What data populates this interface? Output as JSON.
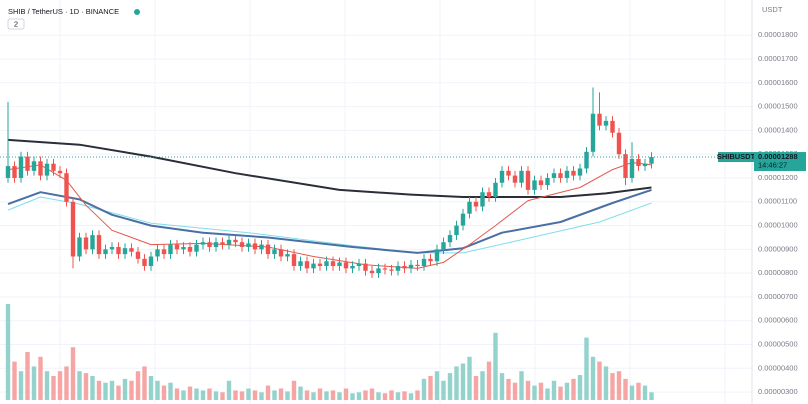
{
  "chart_data": {
    "type": "candlestick",
    "title": "SHIB / TetherUS · 1D · BINANCE",
    "indicators_badge": 2,
    "currency": "USDT",
    "last_price_symbol": "SHIBUSDT",
    "last_price": {
      "value": 1.288e-05,
      "label": "0.00001288"
    },
    "countdown": "14:46:27",
    "up_color": "#26a69a",
    "down_color": "#ef5350",
    "volume_up_color": "#93d3cc",
    "volume_down_color": "#f5a6a4",
    "grid": true,
    "ylim": [
      2.5e-06,
      1.948e-05
    ],
    "y2lim": [
      0,
      100
    ],
    "yticks": [
      {
        "value": 1.8e-05,
        "label": "0.00001800"
      },
      {
        "value": 1.7e-05,
        "label": "0.00001700"
      },
      {
        "value": 1.6e-05,
        "label": "0.00001600"
      },
      {
        "value": 1.5e-05,
        "label": "0.00001500"
      },
      {
        "value": 1.4e-05,
        "label": "0.00001400"
      },
      {
        "value": 1.3e-05,
        "label": "0.00001300"
      },
      {
        "value": 1.2e-05,
        "label": "0.00001200"
      },
      {
        "value": 1.1e-05,
        "label": "0.00001100"
      },
      {
        "value": 1e-05,
        "label": "0.00001000"
      },
      {
        "value": 9e-06,
        "label": "0.00000900"
      },
      {
        "value": 8e-06,
        "label": "0.00000800"
      },
      {
        "value": 7e-06,
        "label": "0.00000700"
      },
      {
        "value": 6e-06,
        "label": "0.00000600"
      },
      {
        "value": 5e-06,
        "label": "0.00000500"
      },
      {
        "value": 4e-06,
        "label": "0.00000400"
      },
      {
        "value": 3e-06,
        "label": "0.00000300"
      }
    ],
    "series": {
      "open": [
        1.2e-05,
        1.25e-05,
        1.2e-05,
        1.29e-05,
        1.23e-05,
        1.27e-05,
        1.21e-05,
        1.26e-05,
        1.23e-05,
        1.22e-05,
        1.1e-05,
        8.7e-06,
        9.5e-06,
        9e-06,
        9.6e-06,
        8.8e-06,
        9e-06,
        9.1e-06,
        8.8e-06,
        9.05e-06,
        8.9e-06,
        8.6e-06,
        8.3e-06,
        8.7e-06,
        9e-06,
        8.8e-06,
        9.2e-06,
        9e-06,
        9.1e-06,
        8.9e-06,
        9.2e-06,
        9.3e-06,
        9.1e-06,
        9.3e-06,
        9.2e-06,
        9.4e-06,
        9.3e-06,
        9.1e-06,
        9.25e-06,
        9e-06,
        9.2e-06,
        8.8e-06,
        9e-06,
        8.7e-06,
        8.8e-06,
        8.3e-06,
        8.5e-06,
        8.2e-06,
        8.4e-06,
        8.3e-06,
        8.5e-06,
        8.3e-06,
        8.45e-06,
        8.2e-06,
        8.3e-06,
        8.4e-06,
        8.1e-06,
        8e-06,
        8.2e-06,
        8.15e-06,
        8.1e-06,
        8.3e-06,
        8.2e-06,
        8.35e-06,
        8.3e-06,
        8.6e-06,
        8.5e-06,
        9e-06,
        9.3e-06,
        9.6e-06,
        1e-05,
        1.05e-05,
        1.1e-05,
        1.08e-05,
        1.14e-05,
        1.12e-05,
        1.18e-05,
        1.23e-05,
        1.21e-05,
        1.18e-05,
        1.23e-05,
        1.15e-05,
        1.19e-05,
        1.17e-05,
        1.2e-05,
        1.22e-05,
        1.2e-05,
        1.23e-05,
        1.21e-05,
        1.24e-05,
        1.31e-05,
        1.47e-05,
        1.42e-05,
        1.44e-05,
        1.39e-05,
        1.3e-05,
        1.2e-05,
        1.28e-05,
        1.25e-05,
        1.26e-05
      ],
      "high": [
        1.52e-05,
        1.27e-05,
        1.31e-05,
        1.31e-05,
        1.29e-05,
        1.29e-05,
        1.28e-05,
        1.28e-05,
        1.25e-05,
        1.24e-05,
        1.12e-05,
        9.7e-06,
        9.7e-06,
        9.8e-06,
        9.8e-06,
        9.2e-06,
        9.3e-06,
        9.3e-06,
        9.25e-06,
        9.25e-06,
        9.1e-06,
        8.8e-06,
        8.9e-06,
        9.2e-06,
        9.2e-06,
        9.4e-06,
        9.4e-06,
        9.3e-06,
        9.3e-06,
        9.4e-06,
        9.5e-06,
        9.5e-06,
        9.5e-06,
        9.5e-06,
        9.6e-06,
        9.6e-06,
        9.5e-06,
        9.45e-06,
        9.45e-06,
        9.4e-06,
        9.4e-06,
        9.2e-06,
        9.2e-06,
        9e-06,
        9e-06,
        8.7e-06,
        8.7e-06,
        8.6e-06,
        8.6e-06,
        8.7e-06,
        8.7e-06,
        8.65e-06,
        8.65e-06,
        8.5e-06,
        8.6e-06,
        8.6e-06,
        8.3e-06,
        8.4e-06,
        8.4e-06,
        8.35e-06,
        8.5e-06,
        8.5e-06,
        8.55e-06,
        8.55e-06,
        8.8e-06,
        8.8e-06,
        9.2e-06,
        9.5e-06,
        9.8e-06,
        1.02e-05,
        1.07e-05,
        1.12e-05,
        1.12e-05,
        1.16e-05,
        1.16e-05,
        1.2e-05,
        1.25e-05,
        1.25e-05,
        1.23e-05,
        1.25e-05,
        1.25e-05,
        1.21e-05,
        1.21e-05,
        1.22e-05,
        1.24e-05,
        1.24e-05,
        1.25e-05,
        1.25e-05,
        1.26e-05,
        1.33e-05,
        1.58e-05,
        1.56e-05,
        1.46e-05,
        1.46e-05,
        1.41e-05,
        1.32e-05,
        1.35e-05,
        1.3e-05,
        1.28e-05,
        1.308e-05
      ],
      "low": [
        1.18e-05,
        1.18e-05,
        1.18e-05,
        1.21e-05,
        1.21e-05,
        1.19e-05,
        1.19e-05,
        1.21e-05,
        1.2e-05,
        1.08e-05,
        8.2e-06,
        8.5e-06,
        8.8e-06,
        8.8e-06,
        8.6e-06,
        8.6e-06,
        8.8e-06,
        8.6e-06,
        8.6e-06,
        8.7e-06,
        8.4e-06,
        8.1e-06,
        8.1e-06,
        8.5e-06,
        8.6e-06,
        8.6e-06,
        8.8e-06,
        8.8e-06,
        8.7e-06,
        8.7e-06,
        9e-06,
        8.9e-06,
        8.9e-06,
        9e-06,
        9e-06,
        9.1e-06,
        8.9e-06,
        8.9e-06,
        8.8e-06,
        8.8e-06,
        8.6e-06,
        8.6e-06,
        8.5e-06,
        8.5e-06,
        8.1e-06,
        8.1e-06,
        8e-06,
        8e-06,
        8.1e-06,
        8.1e-06,
        8.1e-06,
        8.1e-06,
        8e-06,
        8e-06,
        8.1e-06,
        7.9e-06,
        7.8e-06,
        7.8e-06,
        7.95e-06,
        7.9e-06,
        7.9e-06,
        8e-06,
        8e-06,
        8.1e-06,
        8.1e-06,
        8.3e-06,
        8.3e-06,
        8.8e-06,
        9.1e-06,
        9.4e-06,
        9.8e-06,
        1.03e-05,
        1.06e-05,
        1.06e-05,
        1.1e-05,
        1.1e-05,
        1.16e-05,
        1.19e-05,
        1.16e-05,
        1.16e-05,
        1.13e-05,
        1.13e-05,
        1.15e-05,
        1.15e-05,
        1.18e-05,
        1.18e-05,
        1.18e-05,
        1.19e-05,
        1.19e-05,
        1.22e-05,
        1.29e-05,
        1.4e-05,
        1.4e-05,
        1.37e-05,
        1.28e-05,
        1.17e-05,
        1.18e-05,
        1.23e-05,
        1.23e-05,
        1.24e-05
      ],
      "close": [
        1.25e-05,
        1.2e-05,
        1.29e-05,
        1.23e-05,
        1.27e-05,
        1.21e-05,
        1.26e-05,
        1.23e-05,
        1.22e-05,
        1.1e-05,
        8.7e-06,
        9.5e-06,
        9e-06,
        9.6e-06,
        8.8e-06,
        9e-06,
        9.1e-06,
        8.8e-06,
        9.05e-06,
        8.9e-06,
        8.6e-06,
        8.3e-06,
        8.7e-06,
        9e-06,
        8.8e-06,
        9.2e-06,
        9e-06,
        9.1e-06,
        8.9e-06,
        9.2e-06,
        9.3e-06,
        9.1e-06,
        9.3e-06,
        9.2e-06,
        9.4e-06,
        9.3e-06,
        9.1e-06,
        9.25e-06,
        9e-06,
        9.2e-06,
        8.8e-06,
        9e-06,
        8.7e-06,
        8.8e-06,
        8.3e-06,
        8.5e-06,
        8.2e-06,
        8.4e-06,
        8.3e-06,
        8.5e-06,
        8.3e-06,
        8.45e-06,
        8.2e-06,
        8.3e-06,
        8.4e-06,
        8.1e-06,
        8e-06,
        8.2e-06,
        8.15e-06,
        8.1e-06,
        8.3e-06,
        8.2e-06,
        8.35e-06,
        8.3e-06,
        8.6e-06,
        8.5e-06,
        9e-06,
        9.3e-06,
        9.6e-06,
        1e-05,
        1.05e-05,
        1.1e-05,
        1.08e-05,
        1.14e-05,
        1.12e-05,
        1.18e-05,
        1.23e-05,
        1.21e-05,
        1.18e-05,
        1.23e-05,
        1.15e-05,
        1.19e-05,
        1.17e-05,
        1.2e-05,
        1.22e-05,
        1.2e-05,
        1.23e-05,
        1.21e-05,
        1.24e-05,
        1.31e-05,
        1.47e-05,
        1.42e-05,
        1.44e-05,
        1.39e-05,
        1.3e-05,
        1.2e-05,
        1.28e-05,
        1.25e-05,
        1.26e-05,
        1.288e-05
      ]
    },
    "volume": [
      100,
      40,
      30,
      50,
      35,
      45,
      30,
      25,
      30,
      35,
      55,
      30,
      28,
      25,
      20,
      18,
      20,
      15,
      22,
      20,
      30,
      35,
      25,
      20,
      15,
      18,
      12,
      10,
      14,
      12,
      10,
      12,
      9,
      8,
      20,
      10,
      9,
      12,
      10,
      8,
      15,
      10,
      12,
      9,
      20,
      14,
      10,
      8,
      12,
      9,
      10,
      8,
      12,
      7,
      8,
      10,
      12,
      8,
      7,
      10,
      8,
      9,
      7,
      10,
      22,
      25,
      30,
      20,
      28,
      35,
      38,
      45,
      25,
      30,
      40,
      70,
      28,
      22,
      18,
      30,
      20,
      15,
      18,
      12,
      20,
      14,
      18,
      22,
      26,
      65,
      45,
      40,
      35,
      28,
      30,
      22,
      15,
      18,
      15,
      8
    ],
    "lines": [
      {
        "color": "#2a2e39",
        "width": 2,
        "x": [
          0,
          11,
          22,
          35,
          51,
          62,
          70,
          85,
          92,
          99
        ],
        "values": [
          1.36e-05,
          1.34e-05,
          1.29e-05,
          1.22e-05,
          1.15e-05,
          1.13e-05,
          1.12e-05,
          1.12e-05,
          1.135e-05,
          1.16e-05
        ]
      },
      {
        "color": "#80deea",
        "width": 1,
        "x": [
          0,
          5,
          11,
          22,
          37,
          53,
          63,
          70,
          79,
          91,
          99
        ],
        "values": [
          1.065e-05,
          1.12e-05,
          1.09e-05,
          1.01e-05,
          9.7e-06,
          9.15e-06,
          8.85e-06,
          8.85e-06,
          9.4e-06,
          1.015e-05,
          1.095e-05
        ]
      },
      {
        "color": "#4a6fa5",
        "width": 2,
        "x": [
          0,
          5,
          11,
          16,
          22,
          30,
          40,
          53,
          63,
          70,
          76,
          85,
          93,
          99
        ],
        "values": [
          1.09e-05,
          1.14e-05,
          1.11e-05,
          1.045e-05,
          1e-05,
          9.7e-06,
          9.5e-06,
          9.1e-06,
          8.85e-06,
          9.05e-06,
          9.7e-06,
          1.015e-05,
          1.095e-05,
          1.15e-05
        ]
      },
      {
        "color": "#e5574a",
        "width": 1,
        "x": [
          0,
          5,
          9,
          12,
          16,
          22,
          30,
          40,
          47,
          55,
          63,
          67,
          71,
          75,
          80,
          88,
          93,
          96,
          99
        ],
        "values": [
          1.235e-05,
          1.255e-05,
          1.19e-05,
          1.085e-05,
          9.8e-06,
          9.2e-06,
          9.25e-06,
          9.1e-06,
          8.7e-06,
          8.35e-06,
          8.2e-06,
          8.45e-06,
          9.2e-06,
          1e-05,
          1.105e-05,
          1.16e-05,
          1.235e-05,
          1.265e-05,
          1.255e-05
        ]
      }
    ]
  }
}
